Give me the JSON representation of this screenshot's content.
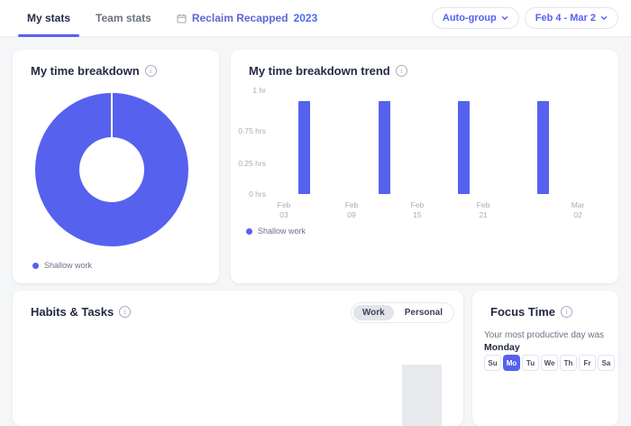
{
  "header": {
    "tabs": [
      {
        "label": "My stats",
        "active": true
      },
      {
        "label": "Team stats",
        "active": false
      },
      {
        "label": "Reclaim Recapped",
        "year": "2023",
        "active": false,
        "icon": "calendar-icon"
      }
    ],
    "controls": [
      {
        "label": "Auto-group"
      },
      {
        "label": "Feb 4 - Mar 2"
      }
    ]
  },
  "cards": {
    "breakdown": {
      "title": "My time breakdown",
      "legend": "Shallow work"
    },
    "trend": {
      "title": "My time breakdown trend",
      "legend": "Shallow work"
    },
    "habits": {
      "title": "Habits & Tasks",
      "toggle": [
        {
          "label": "Work",
          "selected": true
        },
        {
          "label": "Personal",
          "selected": false
        }
      ]
    },
    "focus": {
      "title": "Focus Time",
      "subtitle": "Your most productive day was",
      "productive_day": "Monday",
      "days": [
        {
          "label": "Su",
          "selected": false
        },
        {
          "label": "Mo",
          "selected": true
        },
        {
          "label": "Tu",
          "selected": false
        },
        {
          "label": "We",
          "selected": false
        },
        {
          "label": "Th",
          "selected": false
        },
        {
          "label": "Fr",
          "selected": false
        },
        {
          "label": "Sa",
          "selected": false
        }
      ]
    }
  },
  "icons": {
    "info_glyph": "i"
  },
  "colors": {
    "accent": "#5661EE",
    "page_bg": "#f5f6f8",
    "card_bg": "#ffffff",
    "title_text": "#242a42",
    "muted_text": "#6d7386",
    "axis_text": "#a7acba",
    "recapped_text": "#5e68cf",
    "recapped_year_text": "#4e6af0",
    "placeholder_gray": "#e8e9ed"
  },
  "chart_data": [
    {
      "type": "pie",
      "title": "My time breakdown",
      "labels": [
        "Shallow work"
      ],
      "values": [
        100
      ],
      "unit": "percent",
      "donut": true,
      "color": "#5661EE",
      "legend_position": "bottom-left"
    },
    {
      "type": "bar",
      "title": "My time breakdown trend",
      "ylabel": "hours",
      "ylim": [
        0,
        1
      ],
      "grid": false,
      "legend": [
        "Shallow work"
      ],
      "legend_position": "bottom-left",
      "yticks": [
        {
          "label": "1 hr",
          "y_pct": 0
        },
        {
          "label": "0.75 hrs",
          "y_pct": 39
        },
        {
          "label": "0.25 hrs",
          "y_pct": 70
        },
        {
          "label": "0 hrs",
          "y_pct": 100
        }
      ],
      "xticks": [
        {
          "line1": "Feb",
          "line2": "03",
          "x_pct": 4.1
        },
        {
          "line1": "Feb",
          "line2": "09",
          "x_pct": 24.6
        },
        {
          "line1": "Feb",
          "line2": "15",
          "x_pct": 44.5
        },
        {
          "line1": "Feb",
          "line2": "21",
          "x_pct": 64.5
        },
        {
          "line1": "Mar",
          "line2": "02",
          "x_pct": 93.2
        }
      ],
      "series": [
        {
          "name": "Shallow work",
          "color": "#5661EE",
          "bars": [
            {
              "x_pct": 8.5,
              "value_hrs": 0.9
            },
            {
              "x_pct": 32.8,
              "value_hrs": 0.9
            },
            {
              "x_pct": 56.8,
              "value_hrs": 0.9
            },
            {
              "x_pct": 80.9,
              "value_hrs": 0.9
            }
          ]
        }
      ]
    }
  ]
}
